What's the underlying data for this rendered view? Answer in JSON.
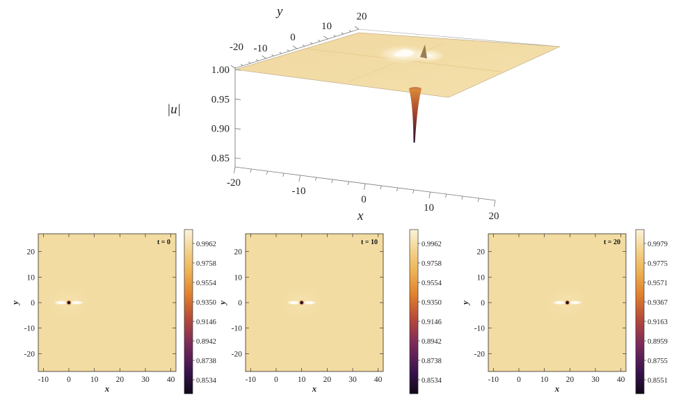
{
  "chart_data": [
    {
      "type": "surface3d",
      "xlabel": "x",
      "ylabel": "y",
      "zlabel": "|u|",
      "x_ticks": [
        "-20",
        "-10",
        "0",
        "10",
        "20"
      ],
      "y_ticks": [
        "-20",
        "-10",
        "0",
        "10",
        "20"
      ],
      "z_ticks": [
        "1.00",
        "0.95",
        "0.90",
        "0.85"
      ],
      "xlim": [
        -20,
        20
      ],
      "ylim": [
        -20,
        20
      ],
      "zlim": [
        0.83,
        1.01
      ],
      "background_level": 1.0,
      "peak_min": 0.87,
      "colors": {
        "surface": "#f2dca2",
        "surface_light": "#fbf2d8",
        "dip_top": "#c8682a",
        "dip_bottom": "#2a0f3a"
      }
    },
    {
      "type": "heatmap",
      "annotation": "t = 0",
      "xlabel": "x",
      "ylabel": "y",
      "x_ticks": [
        "-10",
        "0",
        "10",
        "20",
        "30",
        "40"
      ],
      "y_ticks": [
        "20",
        "10",
        "0",
        "-10",
        "-20"
      ],
      "xlim": [
        -12,
        42
      ],
      "ylim": [
        -27,
        27
      ],
      "center_x": 0,
      "colorbar_ticks": [
        "0.9962",
        "0.9758",
        "0.9554",
        "0.9350",
        "0.9146",
        "0.8942",
        "0.8738",
        "0.8534"
      ]
    },
    {
      "type": "heatmap",
      "annotation": "t = 10",
      "xlabel": "x",
      "ylabel": "y",
      "x_ticks": [
        "-10",
        "0",
        "10",
        "20",
        "30",
        "40"
      ],
      "y_ticks": [
        "20",
        "10",
        "0",
        "-10",
        "-20"
      ],
      "xlim": [
        -12,
        42
      ],
      "ylim": [
        -27,
        27
      ],
      "center_x": 10,
      "colorbar_ticks": [
        "0.9962",
        "0.9758",
        "0.9554",
        "0.9350",
        "0.9146",
        "0.8942",
        "0.8738",
        "0.8534"
      ]
    },
    {
      "type": "heatmap",
      "annotation": "t = 20",
      "xlabel": "x",
      "ylabel": "y",
      "x_ticks": [
        "-10",
        "0",
        "10",
        "20",
        "30",
        "40"
      ],
      "y_ticks": [
        "20",
        "10",
        "0",
        "-10",
        "-20"
      ],
      "xlim": [
        -12,
        42
      ],
      "ylim": [
        -27,
        27
      ],
      "center_x": 19,
      "colorbar_ticks": [
        "0.9979",
        "0.9775",
        "0.9571",
        "0.9367",
        "0.9163",
        "0.8959",
        "0.8755",
        "0.8551"
      ]
    }
  ]
}
